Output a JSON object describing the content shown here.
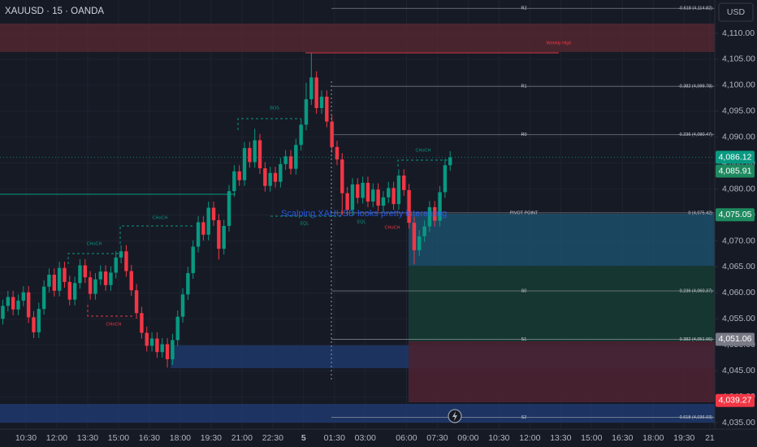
{
  "chart_data": {
    "type": "candlestick",
    "title": "XAUUSD · 15 · OANDA",
    "currency": "USD",
    "up_color": "#089981",
    "down_color": "#f23645",
    "grid": true,
    "ylim": [
      4033.75,
      4116.42
    ],
    "yticks": [
      {
        "value": 4110,
        "label": "4,110.00"
      },
      {
        "value": 4105,
        "label": "4,105.00"
      },
      {
        "value": 4100,
        "label": "4,100.00"
      },
      {
        "value": 4095,
        "label": "4,095.00"
      },
      {
        "value": 4090,
        "label": "4,090.00"
      },
      {
        "value": 4085,
        "label": "4,085.00"
      },
      {
        "value": 4080,
        "label": "4,080.00"
      },
      {
        "value": 4075,
        "label": "4,075.00"
      },
      {
        "value": 4070,
        "label": "4,070.00"
      },
      {
        "value": 4065,
        "label": "4,065.00"
      },
      {
        "value": 4060,
        "label": "4,060.00"
      },
      {
        "value": 4055,
        "label": "4,055.00"
      },
      {
        "value": 4050,
        "label": "4,050.00"
      },
      {
        "value": 4045,
        "label": "4,045.00"
      },
      {
        "value": 4040,
        "label": "4,040.00"
      },
      {
        "value": 4035,
        "label": "4,035.00"
      }
    ],
    "xlim": [
      -0.55,
      138.46
    ],
    "xticks": [
      {
        "value": 4.5,
        "label": "10:30"
      },
      {
        "value": 10.5,
        "label": "12:00"
      },
      {
        "value": 16.5,
        "label": "13:30"
      },
      {
        "value": 22.5,
        "label": "15:00"
      },
      {
        "value": 28.5,
        "label": "16:30"
      },
      {
        "value": 34.5,
        "label": "18:00"
      },
      {
        "value": 40.5,
        "label": "19:30"
      },
      {
        "value": 46.5,
        "label": "21:00"
      },
      {
        "value": 52.5,
        "label": "22:30"
      },
      {
        "value": 58.5,
        "label": "5"
      },
      {
        "value": 64.5,
        "label": "01:30"
      },
      {
        "value": 70.5,
        "label": "03:00"
      },
      {
        "value": 78.5,
        "label": "06:00"
      },
      {
        "value": 84.5,
        "label": "07:30"
      },
      {
        "value": 90.5,
        "label": "09:00"
      },
      {
        "value": 96.5,
        "label": "10:30"
      },
      {
        "value": 102.5,
        "label": "12:00"
      },
      {
        "value": 108.5,
        "label": "13:30"
      },
      {
        "value": 114.5,
        "label": "15:00"
      },
      {
        "value": 120.5,
        "label": "16:30"
      },
      {
        "value": 126.5,
        "label": "18:00"
      },
      {
        "value": 132.5,
        "label": "19:30"
      },
      {
        "value": 137.5,
        "label": "21"
      }
    ],
    "open": [
      4055.0,
      4057.5,
      4059.2,
      4056.8,
      4058.5,
      4060.1,
      4055.3,
      4052.4,
      4056.9,
      4061.2,
      4063.5,
      4060.4,
      4064.8,
      4062.1,
      4058.7,
      4061.9,
      4065.3,
      4063.0,
      4059.8,
      4062.6,
      4064.1,
      4061.5,
      4063.9,
      4066.8,
      4068.0,
      4064.2,
      4060.5,
      4056.1,
      4052.3,
      4049.8,
      4051.2,
      4048.6,
      4050.1,
      4047.2,
      4050.9,
      4055.4,
      4059.7,
      4063.8,
      4068.9,
      4073.6,
      4071.2,
      4076.4,
      4074.0,
      4068.5,
      4072.9,
      4079.6,
      4083.4,
      4081.7,
      4087.9,
      4085.2,
      4089.4,
      4084.0,
      4080.6,
      4083.1,
      4081.4,
      4084.8,
      4086.3,
      4083.9,
      4088.5,
      4092.4,
      4097.3,
      4101.5,
      4095.6,
      4097.8,
      4093.0,
      4088.1,
      4085.7,
      4079.2,
      4076.0,
      4080.9,
      4078.3,
      4081.2,
      4077.6,
      4079.9,
      4076.8,
      4078.4,
      4080.2,
      4077.1,
      4082.6,
      4079.8,
      4073.5,
      4068.2,
      4070.9,
      4072.8,
      4076.5,
      4073.9,
      4079.4,
      4084.6
    ],
    "high": [
      4058.7,
      4060.4,
      4060.4,
      4059.7,
      4061.3,
      4061.3,
      4056.5,
      4058.1,
      4062.4,
      4064.7,
      4064.7,
      4066.0,
      4066.0,
      4063.3,
      4063.1,
      4066.5,
      4066.5,
      4064.2,
      4063.8,
      4065.3,
      4065.3,
      4065.1,
      4068.0,
      4069.2,
      4069.2,
      4065.4,
      4061.7,
      4057.3,
      4053.5,
      4052.4,
      4052.4,
      4051.3,
      4051.3,
      4052.1,
      4056.6,
      4060.9,
      4065.0,
      4070.1,
      4074.8,
      4074.8,
      4077.6,
      4077.6,
      4075.2,
      4074.1,
      4080.8,
      4084.6,
      4084.6,
      4089.1,
      4089.1,
      4091.6,
      4090.6,
      4085.2,
      4084.3,
      4084.3,
      4086.0,
      4087.5,
      4087.5,
      4089.7,
      4093.6,
      4100.5,
      4106.2,
      4102.7,
      4099.0,
      4099.0,
      4094.2,
      4089.3,
      4086.9,
      4080.4,
      4082.1,
      4082.1,
      4082.4,
      4082.4,
      4081.1,
      4081.1,
      4079.6,
      4081.4,
      4081.4,
      4083.8,
      4083.8,
      4081.0,
      4074.7,
      4072.1,
      4074.0,
      4077.7,
      4077.7,
      4080.6,
      4085.8,
      4087.3
    ],
    "low": [
      4053.9,
      4056.4,
      4055.7,
      4055.7,
      4057.4,
      4054.2,
      4051.3,
      4051.3,
      4055.8,
      4060.1,
      4059.3,
      4059.3,
      4061.0,
      4057.6,
      4057.6,
      4060.8,
      4061.9,
      4058.7,
      4058.7,
      4061.5,
      4060.4,
      4060.4,
      4062.8,
      4065.7,
      4063.1,
      4059.4,
      4055.0,
      4051.2,
      4048.7,
      4048.7,
      4047.5,
      4047.5,
      4045.6,
      4046.1,
      4049.8,
      4054.3,
      4058.6,
      4062.7,
      4067.8,
      4070.1,
      4070.1,
      4072.9,
      4066.4,
      4067.4,
      4071.8,
      4078.5,
      4080.6,
      4080.6,
      4084.1,
      4084.1,
      4082.9,
      4079.5,
      4079.5,
      4080.3,
      4080.3,
      4083.7,
      4082.8,
      4082.8,
      4087.4,
      4091.3,
      4096.2,
      4094.5,
      4094.5,
      4091.9,
      4087.0,
      4084.6,
      4075.0,
      4074.9,
      4074.9,
      4077.2,
      4077.2,
      4076.5,
      4076.5,
      4075.7,
      4075.7,
      4077.3,
      4076.0,
      4076.0,
      4078.7,
      4072.4,
      4065.5,
      4067.1,
      4069.8,
      4071.7,
      4072.8,
      4072.8,
      4078.3,
      4083.5
    ],
    "close": [
      4057.5,
      4059.2,
      4056.8,
      4058.5,
      4060.1,
      4055.3,
      4052.4,
      4056.9,
      4061.2,
      4063.5,
      4060.4,
      4064.8,
      4062.1,
      4058.7,
      4061.9,
      4065.3,
      4063.0,
      4059.8,
      4062.6,
      4064.1,
      4061.5,
      4063.9,
      4066.8,
      4068.0,
      4064.2,
      4060.5,
      4056.1,
      4052.3,
      4049.8,
      4051.2,
      4048.6,
      4050.1,
      4047.2,
      4050.9,
      4055.4,
      4059.7,
      4063.8,
      4068.9,
      4073.6,
      4071.2,
      4076.4,
      4074.0,
      4068.5,
      4072.9,
      4079.6,
      4083.4,
      4081.7,
      4087.9,
      4085.2,
      4089.4,
      4084.0,
      4080.6,
      4083.1,
      4081.4,
      4084.8,
      4086.3,
      4083.9,
      4088.5,
      4092.4,
      4097.3,
      4101.5,
      4095.6,
      4097.8,
      4093.0,
      4088.1,
      4085.7,
      4079.2,
      4076.0,
      4080.9,
      4078.3,
      4081.2,
      4077.6,
      4079.9,
      4076.8,
      4078.4,
      4080.2,
      4077.1,
      4082.6,
      4079.8,
      4073.5,
      4068.2,
      4070.9,
      4072.8,
      4076.5,
      4073.9,
      4079.4,
      4084.6,
      4086.1
    ],
    "price_tags": [
      {
        "value": 4086.12,
        "label": "4,086.12",
        "color": "#089981"
      },
      {
        "value": 4085.91,
        "label": "4,085.91",
        "color": "#1e8a5f"
      },
      {
        "value": 4075.05,
        "label": "4,075.05",
        "color": "#1e8a5f"
      },
      {
        "value": 4051.06,
        "label": "4,051.06",
        "color": "#787b86"
      },
      {
        "value": 4039.27,
        "label": "4,039.27",
        "color": "#f23645"
      }
    ],
    "pivots": [
      {
        "name": "R2",
        "label": "-0.618 (4,114.82)",
        "value": 4114.82
      },
      {
        "name": "R1",
        "label": "-0.382 (4,099.78)",
        "value": 4099.78
      },
      {
        "name": "R0",
        "label": "-0.236 (4,090.47)",
        "value": 4090.47
      },
      {
        "name": "PIVOT POINT",
        "label": "0 (4,075.42)",
        "value": 4075.42
      },
      {
        "name": "S0",
        "label": "0.236 (4,060.37)",
        "value": 4060.37
      },
      {
        "name": "S1",
        "label": "0.382 (4,051.06)",
        "value": 4051.06
      },
      {
        "name": "S2",
        "label": "0.618 (4,036.03)",
        "value": 4036.03
      }
    ],
    "annotations": [
      {
        "text": "Weekly High",
        "color": "#f23645"
      },
      {
        "text": "BOS",
        "color": "#089981"
      },
      {
        "text": "CHoCH",
        "color": "#089981"
      },
      {
        "text": "CHoCH",
        "color": "#089981"
      },
      {
        "text": "CHoCH",
        "color": "#f23645"
      },
      {
        "text": "CHoCH",
        "color": "#089981"
      },
      {
        "text": "CHoCH",
        "color": "#f23645"
      },
      {
        "text": "EQL",
        "color": "#089981"
      },
      {
        "text": "EQL",
        "color": "#089981"
      }
    ],
    "watermark": "Scalping XAUUSD looks pretty interesting"
  }
}
